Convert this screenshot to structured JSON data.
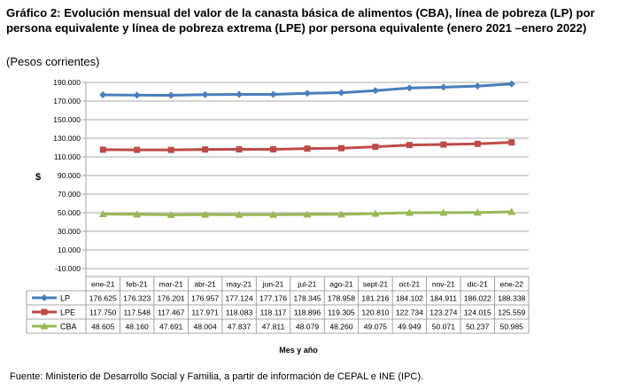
{
  "title": "Gráfico 2: Evolución mensual del valor de la canasta básica de alimentos (CBA), línea de pobreza (LP) por persona equivalente y línea de pobreza extrema (LPE) por persona equivalente (enero 2021 –enero 2022)",
  "subtitle": "(Pesos corrientes)",
  "source": "Fuente: Ministerio de Desarrollo Social y Familia, a partir de información de CEPAL e INE (IPC).",
  "chart_data": {
    "type": "line",
    "categories": [
      "ene-21",
      "feb-21",
      "mar-21",
      "abr-21",
      "may-21",
      "jun-21",
      "jul-21",
      "ago-21",
      "sept-21",
      "oct-21",
      "nov-21",
      "dic-21",
      "ene-22"
    ],
    "ylabel": "$",
    "xlabel": "Mes y año",
    "ylim": [
      -10000,
      190000
    ],
    "yticks": [
      "190.000",
      "170.000",
      "150.000",
      "130.000",
      "110.000",
      "90.000",
      "70.000",
      "50.000",
      "30.000",
      "10.000",
      "-10.000"
    ],
    "ytick_values": [
      190000,
      170000,
      150000,
      130000,
      110000,
      90000,
      70000,
      50000,
      30000,
      10000,
      -10000
    ],
    "legend_placement": "data table below chart",
    "series": [
      {
        "name": "LP",
        "color": "#4a7ebb",
        "marker": "diamond",
        "values": [
          176625,
          176323,
          176201,
          176957,
          177124,
          177176,
          178345,
          178958,
          181216,
          184102,
          184911,
          186022,
          188338
        ],
        "labels": [
          "176.625",
          "176.323",
          "176.201",
          "176.957",
          "177.124",
          "177.176",
          "178.345",
          "178.958",
          "181.216",
          "184.102",
          "184.911",
          "186.022",
          "188.338"
        ]
      },
      {
        "name": "LPE",
        "color": "#be4b48",
        "marker": "square",
        "values": [
          117750,
          117548,
          117467,
          117971,
          118083,
          118117,
          118896,
          119305,
          120810,
          122734,
          123274,
          124015,
          125559
        ],
        "labels": [
          "117.750",
          "117.548",
          "117.467",
          "117.971",
          "118.083",
          "118.117",
          "118.896",
          "119.305",
          "120.810",
          "122.734",
          "123.274",
          "124.015",
          "125.559"
        ]
      },
      {
        "name": "CBA",
        "color": "#98b954",
        "marker": "triangle",
        "values": [
          48605,
          48160,
          47691,
          48004,
          47837,
          47811,
          48079,
          48260,
          49075,
          49949,
          50071,
          50237,
          50985
        ],
        "labels": [
          "48.605",
          "48.160",
          "47.691",
          "48.004",
          "47.837",
          "47.811",
          "48.079",
          "48.260",
          "49.075",
          "49.949",
          "50.071",
          "50.237",
          "50.985"
        ]
      }
    ]
  }
}
